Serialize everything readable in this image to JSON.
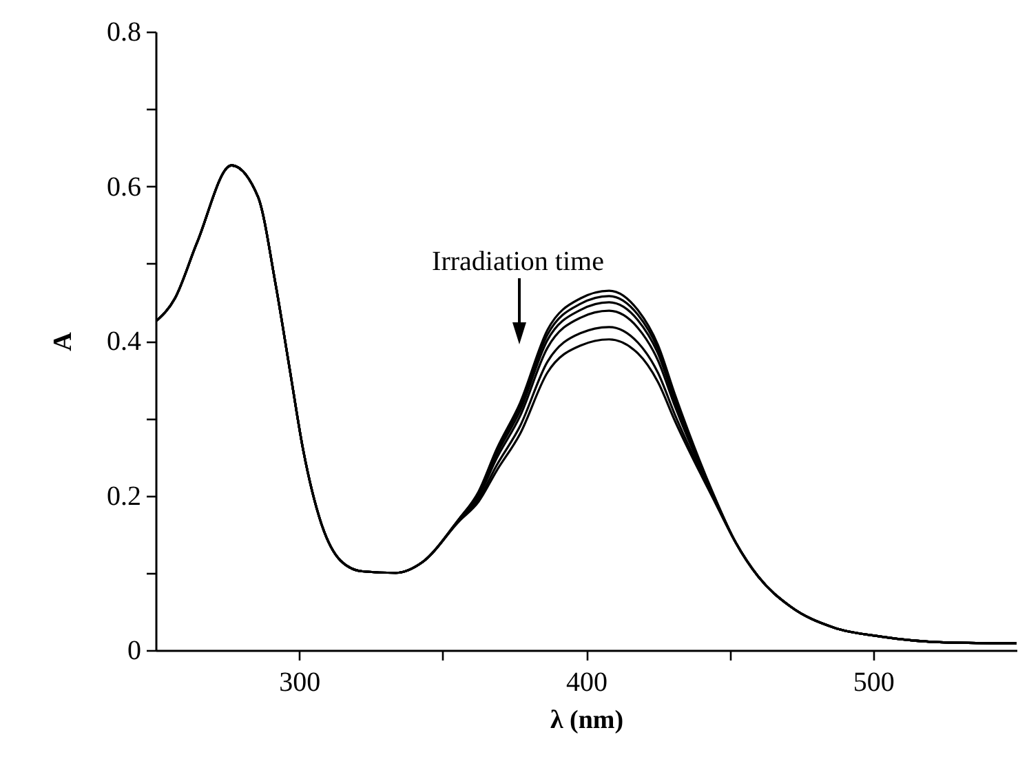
{
  "chart_data": {
    "type": "line",
    "xlabel": "λ (nm)",
    "ylabel": "A",
    "annotations": [
      "Irradiation time"
    ],
    "x": [
      250,
      256.7,
      264.4,
      276.4,
      285.6,
      291.8,
      296.6,
      301.4,
      307.7,
      314.4,
      322,
      333.7,
      343,
      355.8,
      362.5,
      368.8,
      377,
      386.5,
      398,
      408,
      418,
      425,
      431,
      444,
      452,
      460,
      471,
      486.5,
      502,
      526,
      550
    ],
    "series": [
      {
        "color": "#000000",
        "values": [
          0.425,
          0.455,
          0.527,
          0.627,
          0.587,
          0.473,
          0.366,
          0.259,
          0.164,
          0.116,
          0.102,
          0.1,
          0.114,
          0.17,
          0.205,
          0.26,
          0.32,
          0.414,
          0.455,
          0.465,
          0.44,
          0.395,
          0.33,
          0.205,
          0.14,
          0.095,
          0.057,
          0.029,
          0.018,
          0.01,
          0.009
        ]
      },
      {
        "color": "#000000",
        "values": [
          0.425,
          0.455,
          0.527,
          0.627,
          0.587,
          0.473,
          0.366,
          0.259,
          0.164,
          0.116,
          0.102,
          0.1,
          0.114,
          0.17,
          0.203,
          0.257,
          0.316,
          0.408,
          0.448,
          0.458,
          0.434,
          0.39,
          0.326,
          0.204,
          0.14,
          0.095,
          0.057,
          0.029,
          0.018,
          0.01,
          0.009
        ]
      },
      {
        "color": "#000000",
        "values": [
          0.425,
          0.455,
          0.527,
          0.627,
          0.587,
          0.473,
          0.366,
          0.259,
          0.164,
          0.116,
          0.102,
          0.1,
          0.114,
          0.17,
          0.201,
          0.253,
          0.31,
          0.401,
          0.44,
          0.45,
          0.427,
          0.384,
          0.321,
          0.203,
          0.14,
          0.095,
          0.057,
          0.029,
          0.018,
          0.01,
          0.009
        ]
      },
      {
        "color": "#000000",
        "values": [
          0.425,
          0.455,
          0.527,
          0.627,
          0.587,
          0.473,
          0.366,
          0.259,
          0.164,
          0.116,
          0.102,
          0.1,
          0.114,
          0.169,
          0.199,
          0.248,
          0.303,
          0.391,
          0.43,
          0.439,
          0.417,
          0.375,
          0.315,
          0.202,
          0.14,
          0.095,
          0.057,
          0.029,
          0.018,
          0.01,
          0.009
        ]
      },
      {
        "color": "#000000",
        "values": [
          0.425,
          0.455,
          0.527,
          0.627,
          0.587,
          0.473,
          0.366,
          0.259,
          0.164,
          0.116,
          0.102,
          0.1,
          0.114,
          0.168,
          0.195,
          0.239,
          0.29,
          0.373,
          0.41,
          0.418,
          0.398,
          0.359,
          0.304,
          0.2,
          0.14,
          0.095,
          0.057,
          0.029,
          0.018,
          0.01,
          0.009
        ]
      },
      {
        "color": "#000000",
        "values": [
          0.425,
          0.455,
          0.527,
          0.627,
          0.587,
          0.473,
          0.366,
          0.259,
          0.164,
          0.116,
          0.102,
          0.1,
          0.114,
          0.167,
          0.192,
          0.232,
          0.28,
          0.359,
          0.394,
          0.402,
          0.384,
          0.347,
          0.296,
          0.198,
          0.14,
          0.095,
          0.057,
          0.029,
          0.018,
          0.01,
          0.009
        ]
      }
    ],
    "xlim": [
      250,
      550
    ],
    "xticks": [
      300,
      {
        "value": 350,
        "label": null
      },
      400,
      {
        "value": 450,
        "label": null
      },
      500
    ],
    "ylim": [
      0,
      0.8
    ],
    "yticks": [
      0,
      {
        "value": 0.1,
        "label": null
      },
      0.2,
      {
        "value": 0.3,
        "label": null
      },
      0.4,
      {
        "value": 0.5,
        "label": null
      },
      0.6,
      {
        "value": 0.7,
        "label": null
      },
      0.8
    ],
    "grid": false,
    "legend": false,
    "marker": "none",
    "line_style": "solid"
  }
}
